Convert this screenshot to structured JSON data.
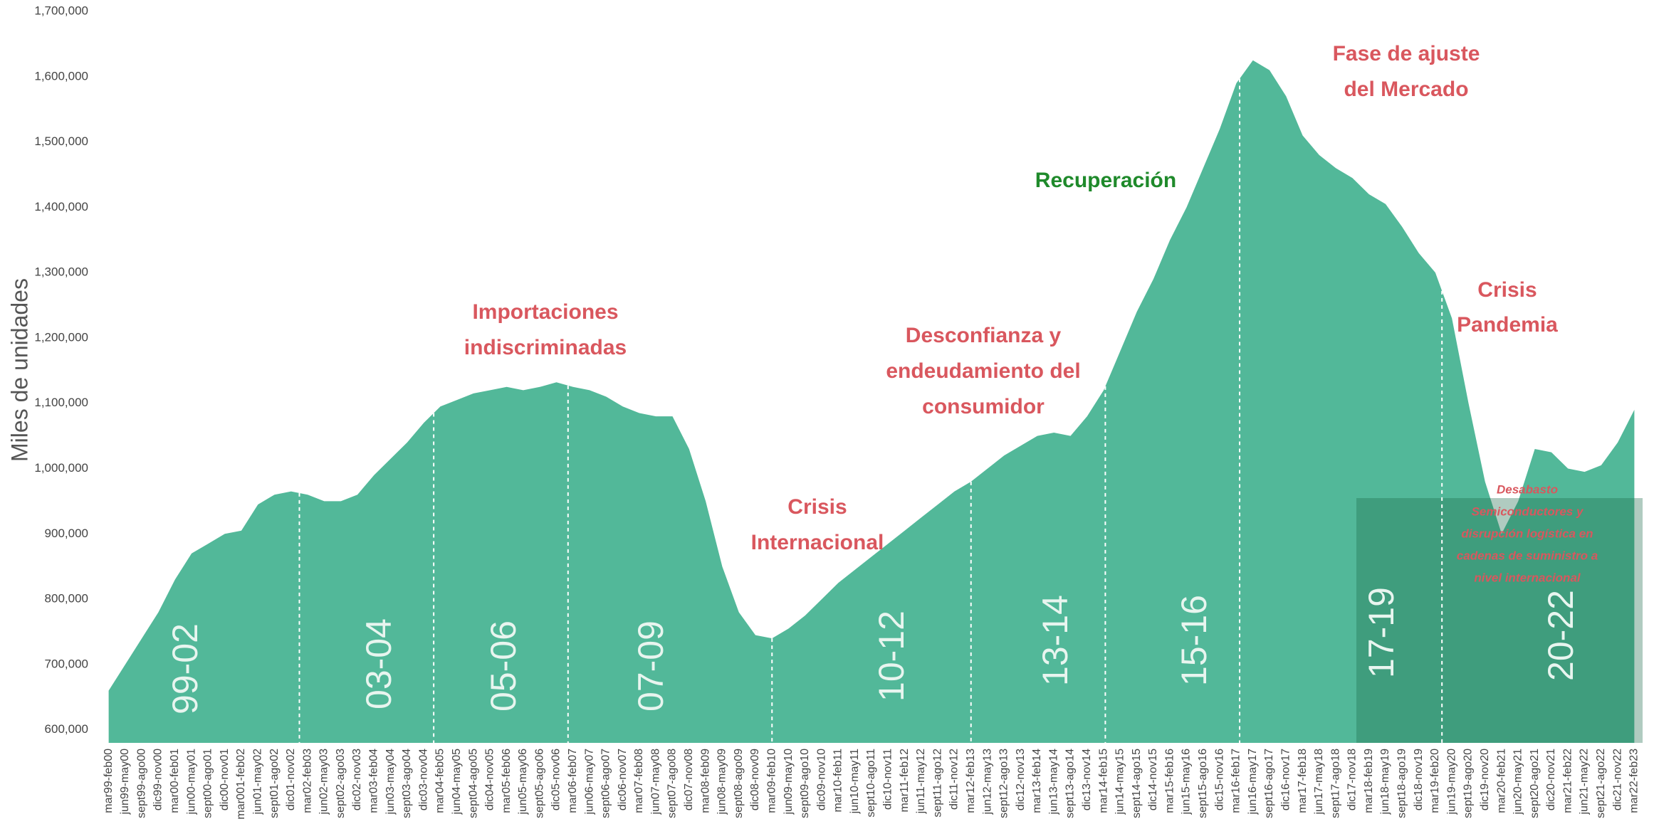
{
  "chart_data": {
    "type": "area",
    "y_label": "Miles de unidades",
    "color": "#52b899",
    "categories": [
      "mar99-feb00",
      "jun99-may00",
      "sept99-ago00",
      "dic99-nov00",
      "mar00-feb01",
      "jun00-may01",
      "sept00-ago01",
      "dic00-nov01",
      "mar001-feb02",
      "jun01-may02",
      "sept01-ago02",
      "dic01-nov02",
      "mar02-feb03",
      "jun02-may03",
      "sept02-ago03",
      "dic02-nov03",
      "mar03-feb04",
      "jun03-may04",
      "sept03-ago04",
      "dic03-nov04",
      "mar04-feb05",
      "jun04-may05",
      "sept04-ago05",
      "dic04-nov05",
      "mar05-feb06",
      "jun05-may06",
      "sept05-ago06",
      "dic05-nov06",
      "mar06-feb07",
      "jun06-may07",
      "sept06-ago07",
      "dic06-nov07",
      "mar07-feb08",
      "jun07-may08",
      "sept07-ago08",
      "dic07-nov08",
      "mar08-feb09",
      "jun08-may09",
      "sept08-ago09",
      "dic08-nov09",
      "mar09-feb10",
      "jun09-may10",
      "sept09-ago10",
      "dic09-nov10",
      "mar10-feb11",
      "jun10-may11",
      "sept10-ago11",
      "dic10-nov11",
      "mar11-feb12",
      "jun11-may12",
      "sept11-ago12",
      "dic11-nov12",
      "mar12-feb13",
      "jun12-may13",
      "sept12-ago13",
      "dic12-nov13",
      "mar13-feb14",
      "jun13-may14",
      "sept13-ago14",
      "dic13-nov14",
      "mar14-feb15",
      "jun14-may15",
      "sept14-ago15",
      "dic14-nov15",
      "mar15-feb16",
      "jun15-may16",
      "sept15-ago16",
      "dic15-nov16",
      "mar16-feb17",
      "jun16-may17",
      "sept16-ago17",
      "dic16-nov17",
      "mar17-feb18",
      "jun17-may18",
      "sept17-ago18",
      "dic17-nov18",
      "mar18-feb19",
      "jun18-may19",
      "sept18-ago19",
      "dic18-nov19",
      "mar19-feb20",
      "jun19-may20",
      "sept19-ago20",
      "dic19-nov20",
      "mar20-feb21",
      "jun20-may21",
      "sept20-ago21",
      "dic20-nov21",
      "mar21-feb22",
      "jun21-may22",
      "sept21-ago22",
      "dic21-nov22",
      "mar22-feb23"
    ],
    "values": [
      660000,
      700000,
      740000,
      780000,
      830000,
      870000,
      885000,
      900000,
      905000,
      945000,
      960000,
      965000,
      960000,
      950000,
      950000,
      960000,
      990000,
      1015000,
      1040000,
      1070000,
      1095000,
      1105000,
      1115000,
      1120000,
      1125000,
      1120000,
      1125000,
      1132000,
      1125000,
      1120000,
      1110000,
      1095000,
      1085000,
      1080000,
      1080000,
      1030000,
      950000,
      850000,
      780000,
      745000,
      740000,
      755000,
      775000,
      800000,
      825000,
      845000,
      865000,
      885000,
      905000,
      925000,
      945000,
      965000,
      980000,
      1000000,
      1020000,
      1035000,
      1050000,
      1055000,
      1050000,
      1080000,
      1120000,
      1180000,
      1240000,
      1290000,
      1350000,
      1400000,
      1460000,
      1520000,
      1590000,
      1625000,
      1610000,
      1570000,
      1510000,
      1480000,
      1460000,
      1445000,
      1420000,
      1405000,
      1370000,
      1330000,
      1300000,
      1230000,
      1100000,
      980000,
      900000,
      950000,
      1030000,
      1025000,
      1000000,
      995000,
      1005000,
      1040000,
      1090000
    ],
    "ylim": [
      580000,
      1700000
    ],
    "yticks": [
      {
        "value": 600000,
        "label": "600,000"
      },
      {
        "value": 700000,
        "label": "700,000"
      },
      {
        "value": 800000,
        "label": "800,000"
      },
      {
        "value": 900000,
        "label": "900,000"
      },
      {
        "value": 1000000,
        "label": "1,000,000"
      },
      {
        "value": 1100000,
        "label": "1,100,000"
      },
      {
        "value": 1200000,
        "label": "1,200,000"
      },
      {
        "value": 1300000,
        "label": "1,300,000"
      },
      {
        "value": 1400000,
        "label": "1,400,000"
      },
      {
        "value": 1500000,
        "label": "1,500,000"
      },
      {
        "value": 1600000,
        "label": "1,600,000"
      },
      {
        "value": 1700000,
        "label": "1,700,000"
      }
    ],
    "periods": [
      "99-02",
      "03-04",
      "05-06",
      "07-09",
      "10-12",
      "13-14",
      "15-16",
      "17-19",
      "20-22"
    ],
    "annotations": [
      {
        "lines": [
          "Importaciones",
          "indiscriminadas"
        ],
        "color": "#d9575e",
        "italic": false
      },
      {
        "lines": [
          "Crisis",
          "Internacional"
        ],
        "color": "#d9575e",
        "italic": false
      },
      {
        "lines": [
          "Desconfianza y",
          "endeudamiento del",
          "consumidor"
        ],
        "color": "#d9575e",
        "italic": false
      },
      {
        "lines": [
          "Recuperación"
        ],
        "color": "#1f8a2b",
        "italic": false
      },
      {
        "lines": [
          "Fase de ajuste",
          "del Mercado"
        ],
        "color": "#d9575e",
        "italic": false
      },
      {
        "lines": [
          "Crisis",
          "Pandemia"
        ],
        "color": "#d9575e",
        "italic": false
      },
      {
        "lines": [
          "Desabasto",
          "Semiconductores y",
          "disrupción logística en",
          "cadenas de suministro a",
          "nivel internacional"
        ],
        "color": "#d9575e",
        "italic": true
      }
    ]
  }
}
